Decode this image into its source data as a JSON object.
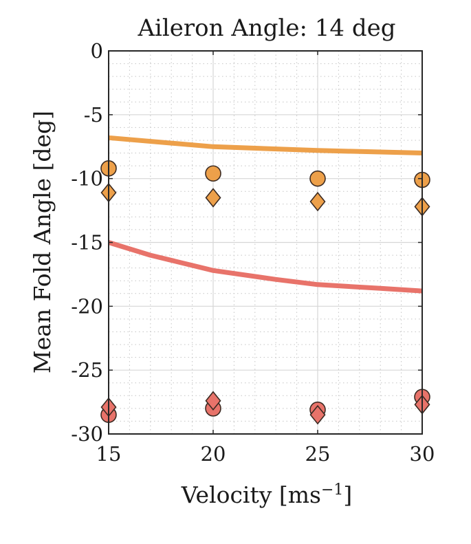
{
  "chart_data": {
    "type": "line",
    "title": "Aileron Angle: 14 deg",
    "xlabel": "Velocity",
    "xlabel_unit_base": "ms",
    "xlabel_unit_exp": "−1",
    "ylabel": "Mean Fold Angle [deg]",
    "xlim": [
      15,
      30
    ],
    "ylim": [
      -30,
      0
    ],
    "xticks": [
      15,
      20,
      25,
      30
    ],
    "yticks": [
      0,
      -5,
      -10,
      -15,
      -20,
      -25,
      -30
    ],
    "xtick_labels": [
      "15",
      "20",
      "25",
      "30"
    ],
    "ytick_labels": [
      "0",
      "-5",
      "-10",
      "-15",
      "-20",
      "-25",
      "-30"
    ],
    "grid": true,
    "minor_grid": true,
    "legend": false,
    "series": [
      {
        "style": "line",
        "color": "#eda04a",
        "x": [
          15,
          20,
          25,
          30
        ],
        "y": [
          -6.8,
          -7.5,
          -7.8,
          -8.0
        ]
      },
      {
        "style": "line",
        "color": "#e8736a",
        "x": [
          15,
          17,
          20,
          23,
          25,
          28,
          30
        ],
        "y": [
          -15.0,
          -16.0,
          -17.2,
          -17.9,
          -18.3,
          -18.6,
          -18.8
        ]
      },
      {
        "style": "circle",
        "color": "#eda04a",
        "x": [
          15,
          20,
          25,
          30
        ],
        "y": [
          -9.2,
          -9.6,
          -10.0,
          -10.1
        ]
      },
      {
        "style": "diamond",
        "color": "#eda04a",
        "x": [
          15,
          20,
          25,
          30
        ],
        "y": [
          -11.1,
          -11.5,
          -11.8,
          -12.2
        ]
      },
      {
        "style": "circle",
        "color": "#e8736a",
        "x": [
          15,
          20,
          25,
          30
        ],
        "y": [
          -28.5,
          -28.0,
          -28.1,
          -27.1
        ]
      },
      {
        "style": "diamond",
        "color": "#e8736a",
        "x": [
          15,
          20,
          25,
          30
        ],
        "y": [
          -27.9,
          -27.4,
          -28.5,
          -27.7
        ]
      }
    ]
  }
}
